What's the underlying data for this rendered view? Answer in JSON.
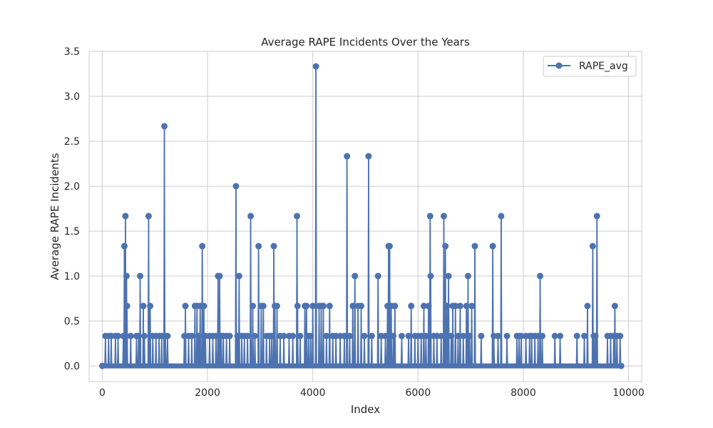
{
  "chart_data": {
    "type": "line",
    "title": "Average RAPE Incidents Over the Years",
    "xlabel": "Index",
    "ylabel": "Average RAPE Incidents",
    "xlim": [
      -250,
      10250
    ],
    "ylim": [
      -0.175,
      3.5
    ],
    "xticks": [
      0,
      2000,
      4000,
      6000,
      8000,
      10000
    ],
    "yticks": [
      0.0,
      0.5,
      1.0,
      1.5,
      2.0,
      2.5,
      3.0,
      3.5
    ],
    "xtick_labels": [
      "0",
      "2000",
      "4000",
      "6000",
      "8000",
      "10000"
    ],
    "ytick_labels": [
      "0.0",
      "0.5",
      "1.0",
      "1.5",
      "2.0",
      "2.5",
      "3.0",
      "3.5"
    ],
    "grid": true,
    "legend_position": "top-right",
    "color": "#4c72b0",
    "baseline": 0.0,
    "x_max": 9860,
    "series": [
      {
        "name": "RAPE_avg",
        "peaks": [
          [
            60,
            0.333
          ],
          [
            120,
            0.333
          ],
          [
            170,
            0.333
          ],
          [
            250,
            0.333
          ],
          [
            300,
            0.333
          ],
          [
            400,
            0.333
          ],
          [
            420,
            1.333
          ],
          [
            440,
            1.667
          ],
          [
            450,
            0.333
          ],
          [
            460,
            1.0
          ],
          [
            470,
            0.667
          ],
          [
            540,
            0.333
          ],
          [
            650,
            0.333
          ],
          [
            690,
            0.333
          ],
          [
            720,
            1.0
          ],
          [
            780,
            0.667
          ],
          [
            800,
            0.333
          ],
          [
            880,
            1.667
          ],
          [
            910,
            0.667
          ],
          [
            960,
            0.333
          ],
          [
            1020,
            0.333
          ],
          [
            1080,
            0.333
          ],
          [
            1130,
            0.333
          ],
          [
            1180,
            2.667
          ],
          [
            1200,
            0.333
          ],
          [
            1240,
            0.333
          ],
          [
            1560,
            0.333
          ],
          [
            1580,
            0.667
          ],
          [
            1640,
            0.333
          ],
          [
            1700,
            0.333
          ],
          [
            1760,
            0.667
          ],
          [
            1800,
            0.667
          ],
          [
            1830,
            0.333
          ],
          [
            1860,
            0.667
          ],
          [
            1900,
            1.333
          ],
          [
            1930,
            0.667
          ],
          [
            1960,
            0.333
          ],
          [
            2040,
            0.333
          ],
          [
            2100,
            0.333
          ],
          [
            2160,
            0.333
          ],
          [
            2200,
            1.0
          ],
          [
            2230,
            1.0
          ],
          [
            2260,
            0.333
          ],
          [
            2300,
            0.333
          ],
          [
            2360,
            0.333
          ],
          [
            2420,
            0.333
          ],
          [
            2540,
            2.0
          ],
          [
            2570,
            0.333
          ],
          [
            2600,
            1.0
          ],
          [
            2650,
            0.333
          ],
          [
            2700,
            0.333
          ],
          [
            2760,
            0.333
          ],
          [
            2820,
            1.667
          ],
          [
            2860,
            0.667
          ],
          [
            2900,
            0.333
          ],
          [
            2970,
            1.333
          ],
          [
            3020,
            0.667
          ],
          [
            3060,
            0.667
          ],
          [
            3120,
            0.333
          ],
          [
            3180,
            0.333
          ],
          [
            3220,
            0.333
          ],
          [
            3260,
            1.333
          ],
          [
            3280,
            0.667
          ],
          [
            3320,
            0.667
          ],
          [
            3380,
            0.333
          ],
          [
            3450,
            0.333
          ],
          [
            3550,
            0.333
          ],
          [
            3620,
            0.333
          ],
          [
            3700,
            1.667
          ],
          [
            3710,
            0.667
          ],
          [
            3760,
            0.333
          ],
          [
            3850,
            0.667
          ],
          [
            3880,
            0.667
          ],
          [
            3920,
            0.333
          ],
          [
            3960,
            0.333
          ],
          [
            4000,
            0.667
          ],
          [
            4060,
            3.333
          ],
          [
            4120,
            0.667
          ],
          [
            4160,
            0.667
          ],
          [
            4200,
            0.667
          ],
          [
            4260,
            0.333
          ],
          [
            4320,
            0.667
          ],
          [
            4380,
            0.333
          ],
          [
            4440,
            0.333
          ],
          [
            4520,
            0.333
          ],
          [
            4600,
            0.333
          ],
          [
            4650,
            2.333
          ],
          [
            4700,
            0.333
          ],
          [
            4760,
            0.667
          ],
          [
            4800,
            1.0
          ],
          [
            4860,
            0.667
          ],
          [
            4920,
            0.667
          ],
          [
            4980,
            0.333
          ],
          [
            5060,
            2.333
          ],
          [
            5120,
            0.333
          ],
          [
            5240,
            1.0
          ],
          [
            5300,
            0.333
          ],
          [
            5380,
            0.333
          ],
          [
            5420,
            0.667
          ],
          [
            5440,
            1.333
          ],
          [
            5460,
            1.333
          ],
          [
            5490,
            0.667
          ],
          [
            5530,
            0.333
          ],
          [
            5560,
            0.667
          ],
          [
            5690,
            0.333
          ],
          [
            5820,
            0.333
          ],
          [
            5870,
            0.667
          ],
          [
            5940,
            0.333
          ],
          [
            6000,
            0.333
          ],
          [
            6060,
            0.333
          ],
          [
            6110,
            0.667
          ],
          [
            6150,
            0.333
          ],
          [
            6200,
            0.667
          ],
          [
            6230,
            1.667
          ],
          [
            6240,
            1.0
          ],
          [
            6300,
            0.333
          ],
          [
            6360,
            0.333
          ],
          [
            6440,
            0.333
          ],
          [
            6490,
            1.667
          ],
          [
            6520,
            1.333
          ],
          [
            6550,
            0.667
          ],
          [
            6580,
            1.0
          ],
          [
            6630,
            0.333
          ],
          [
            6660,
            0.667
          ],
          [
            6710,
            0.667
          ],
          [
            6760,
            0.333
          ],
          [
            6800,
            0.667
          ],
          [
            6860,
            0.333
          ],
          [
            6920,
            0.667
          ],
          [
            6950,
            1.0
          ],
          [
            6980,
            0.333
          ],
          [
            7020,
            0.667
          ],
          [
            7080,
            1.333
          ],
          [
            7200,
            0.333
          ],
          [
            7420,
            1.333
          ],
          [
            7440,
            0.333
          ],
          [
            7520,
            0.333
          ],
          [
            7580,
            1.667
          ],
          [
            7690,
            0.333
          ],
          [
            7880,
            0.333
          ],
          [
            7920,
            0.333
          ],
          [
            7960,
            0.333
          ],
          [
            8050,
            0.333
          ],
          [
            8120,
            0.333
          ],
          [
            8160,
            0.333
          ],
          [
            8220,
            0.333
          ],
          [
            8280,
            0.333
          ],
          [
            8320,
            1.0
          ],
          [
            8360,
            0.333
          ],
          [
            8600,
            0.333
          ],
          [
            8700,
            0.333
          ],
          [
            9020,
            0.333
          ],
          [
            9160,
            0.333
          ],
          [
            9220,
            0.667
          ],
          [
            9320,
            1.333
          ],
          [
            9340,
            0.333
          ],
          [
            9370,
            0.333
          ],
          [
            9400,
            1.667
          ],
          [
            9600,
            0.333
          ],
          [
            9660,
            0.333
          ],
          [
            9720,
            0.333
          ],
          [
            9740,
            0.667
          ],
          [
            9780,
            0.333
          ],
          [
            9840,
            0.333
          ]
        ]
      }
    ]
  }
}
